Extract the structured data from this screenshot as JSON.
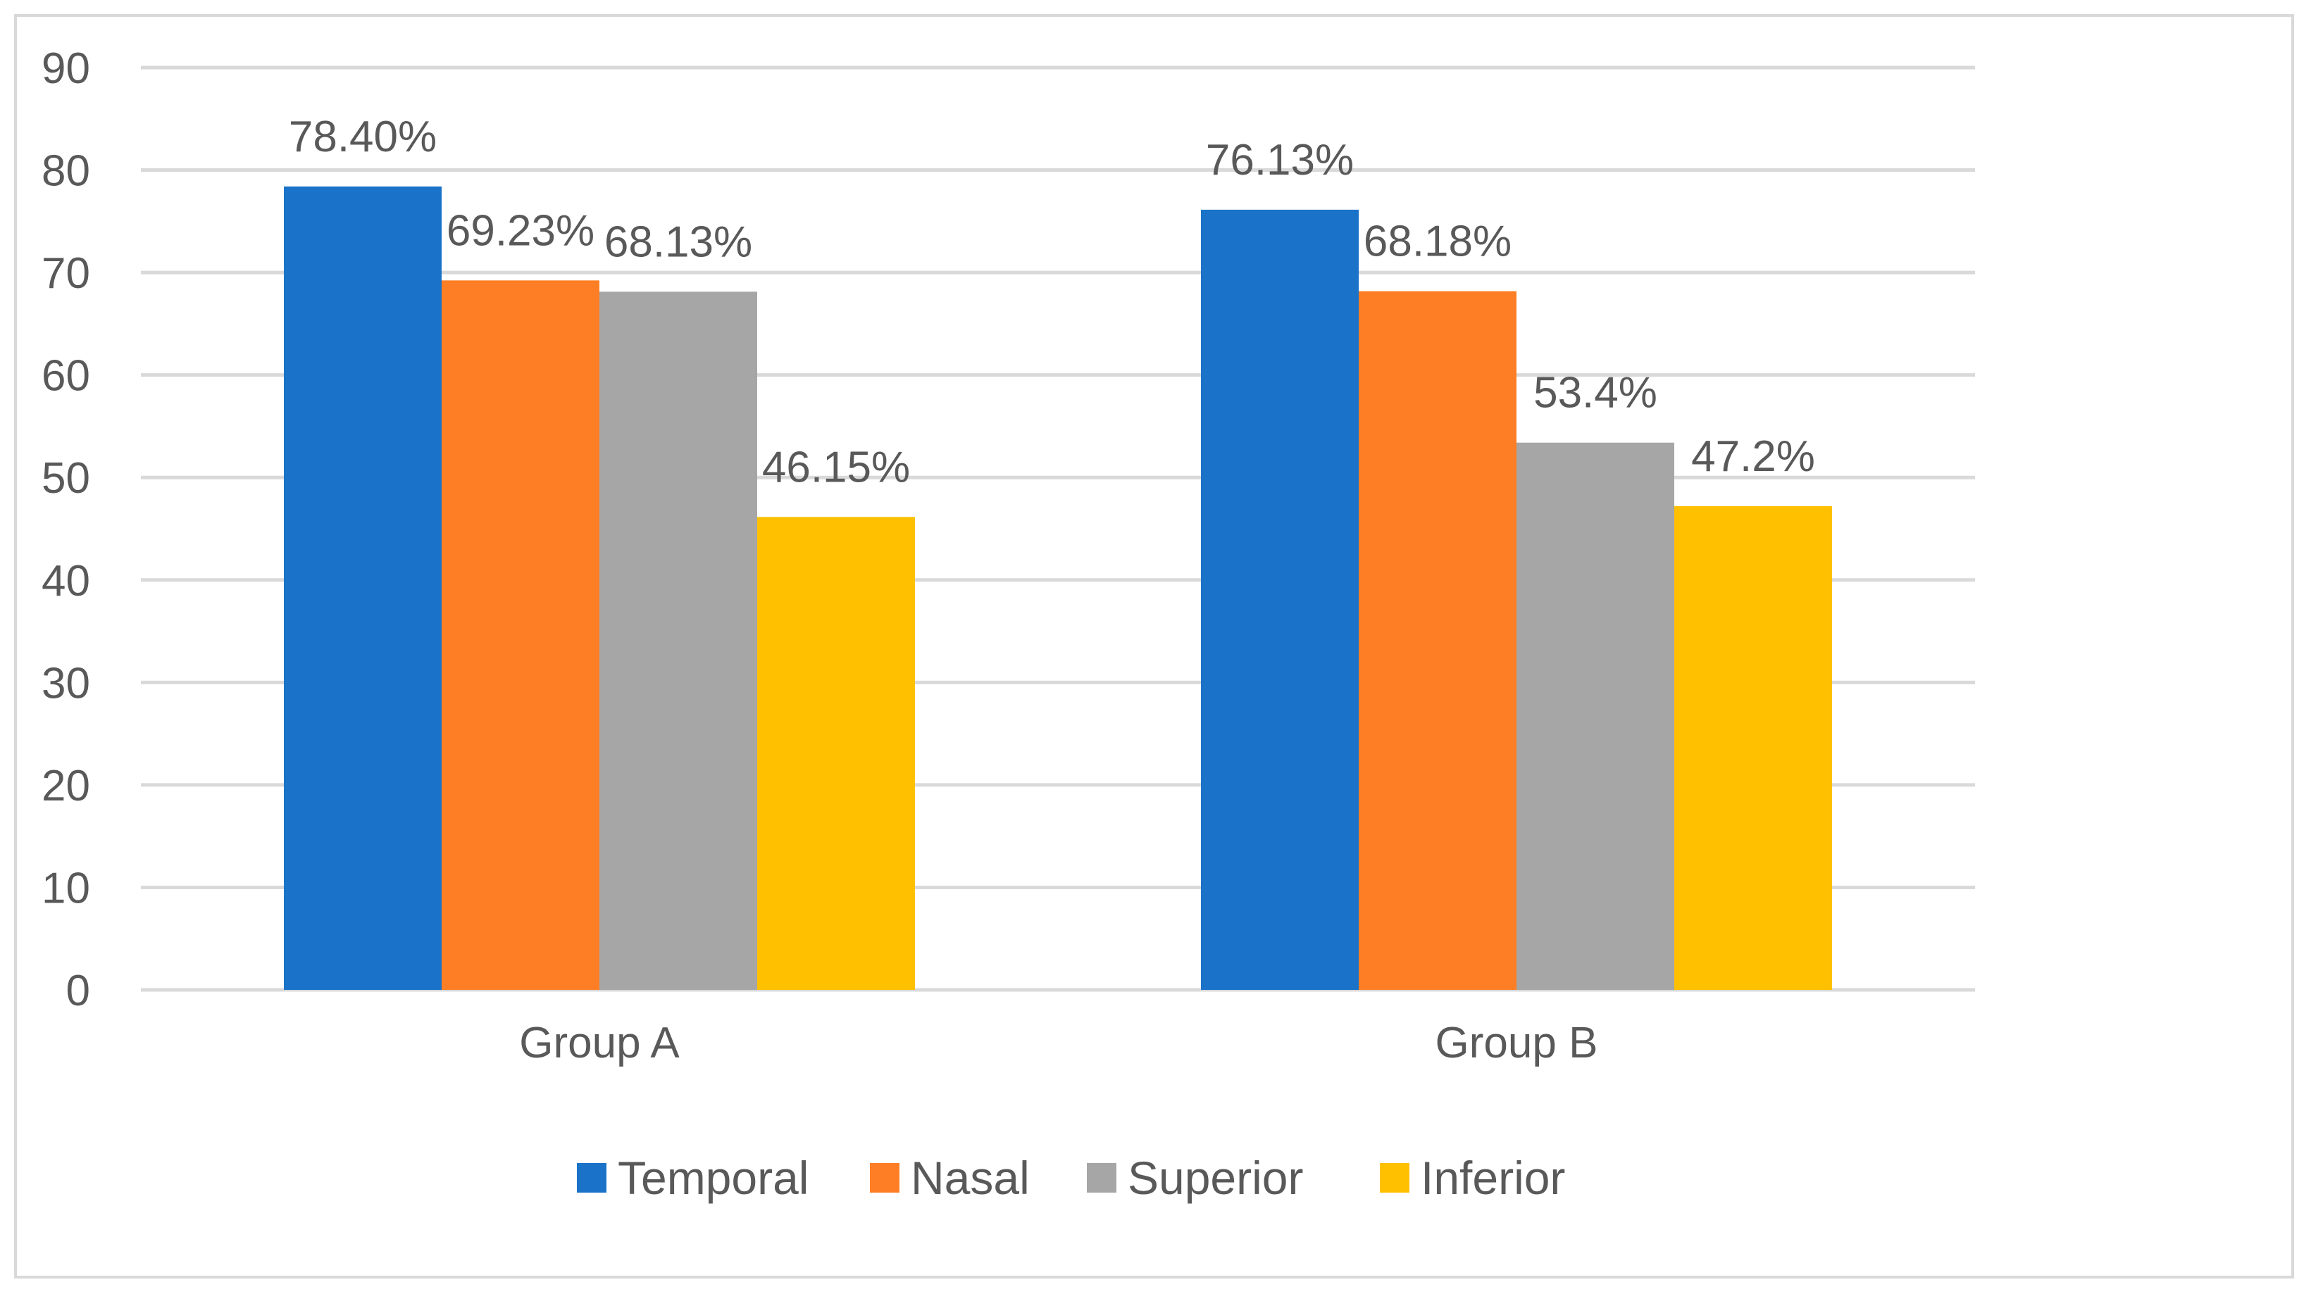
{
  "chart_data": {
    "type": "bar",
    "categories": [
      "Group A",
      "Group B"
    ],
    "series": [
      {
        "name": "Temporal",
        "values": [
          78.4,
          76.13
        ],
        "labels": [
          "78.40%",
          "76.13%"
        ],
        "color": "#1a73c9"
      },
      {
        "name": "Nasal",
        "values": [
          69.23,
          68.18
        ],
        "labels": [
          "69.23%",
          "68.18%"
        ],
        "color": "#fd7e24"
      },
      {
        "name": "Superior",
        "values": [
          68.13,
          53.4
        ],
        "labels": [
          "68.13%",
          "53.4%"
        ],
        "color": "#a6a6a6"
      },
      {
        "name": "Inferior",
        "values": [
          46.15,
          47.2
        ],
        "labels": [
          "46.15%",
          "47.2%"
        ],
        "color": "#ffc000"
      }
    ],
    "title": "",
    "xlabel": "",
    "ylabel": "",
    "ylim": [
      0,
      90
    ],
    "yticks": [
      0,
      10,
      20,
      30,
      40,
      50,
      60,
      70,
      80,
      90
    ],
    "grid": true,
    "legend": "bottom-center"
  },
  "colors": {
    "gridline": "#d9d9d9",
    "text": "#595959"
  }
}
